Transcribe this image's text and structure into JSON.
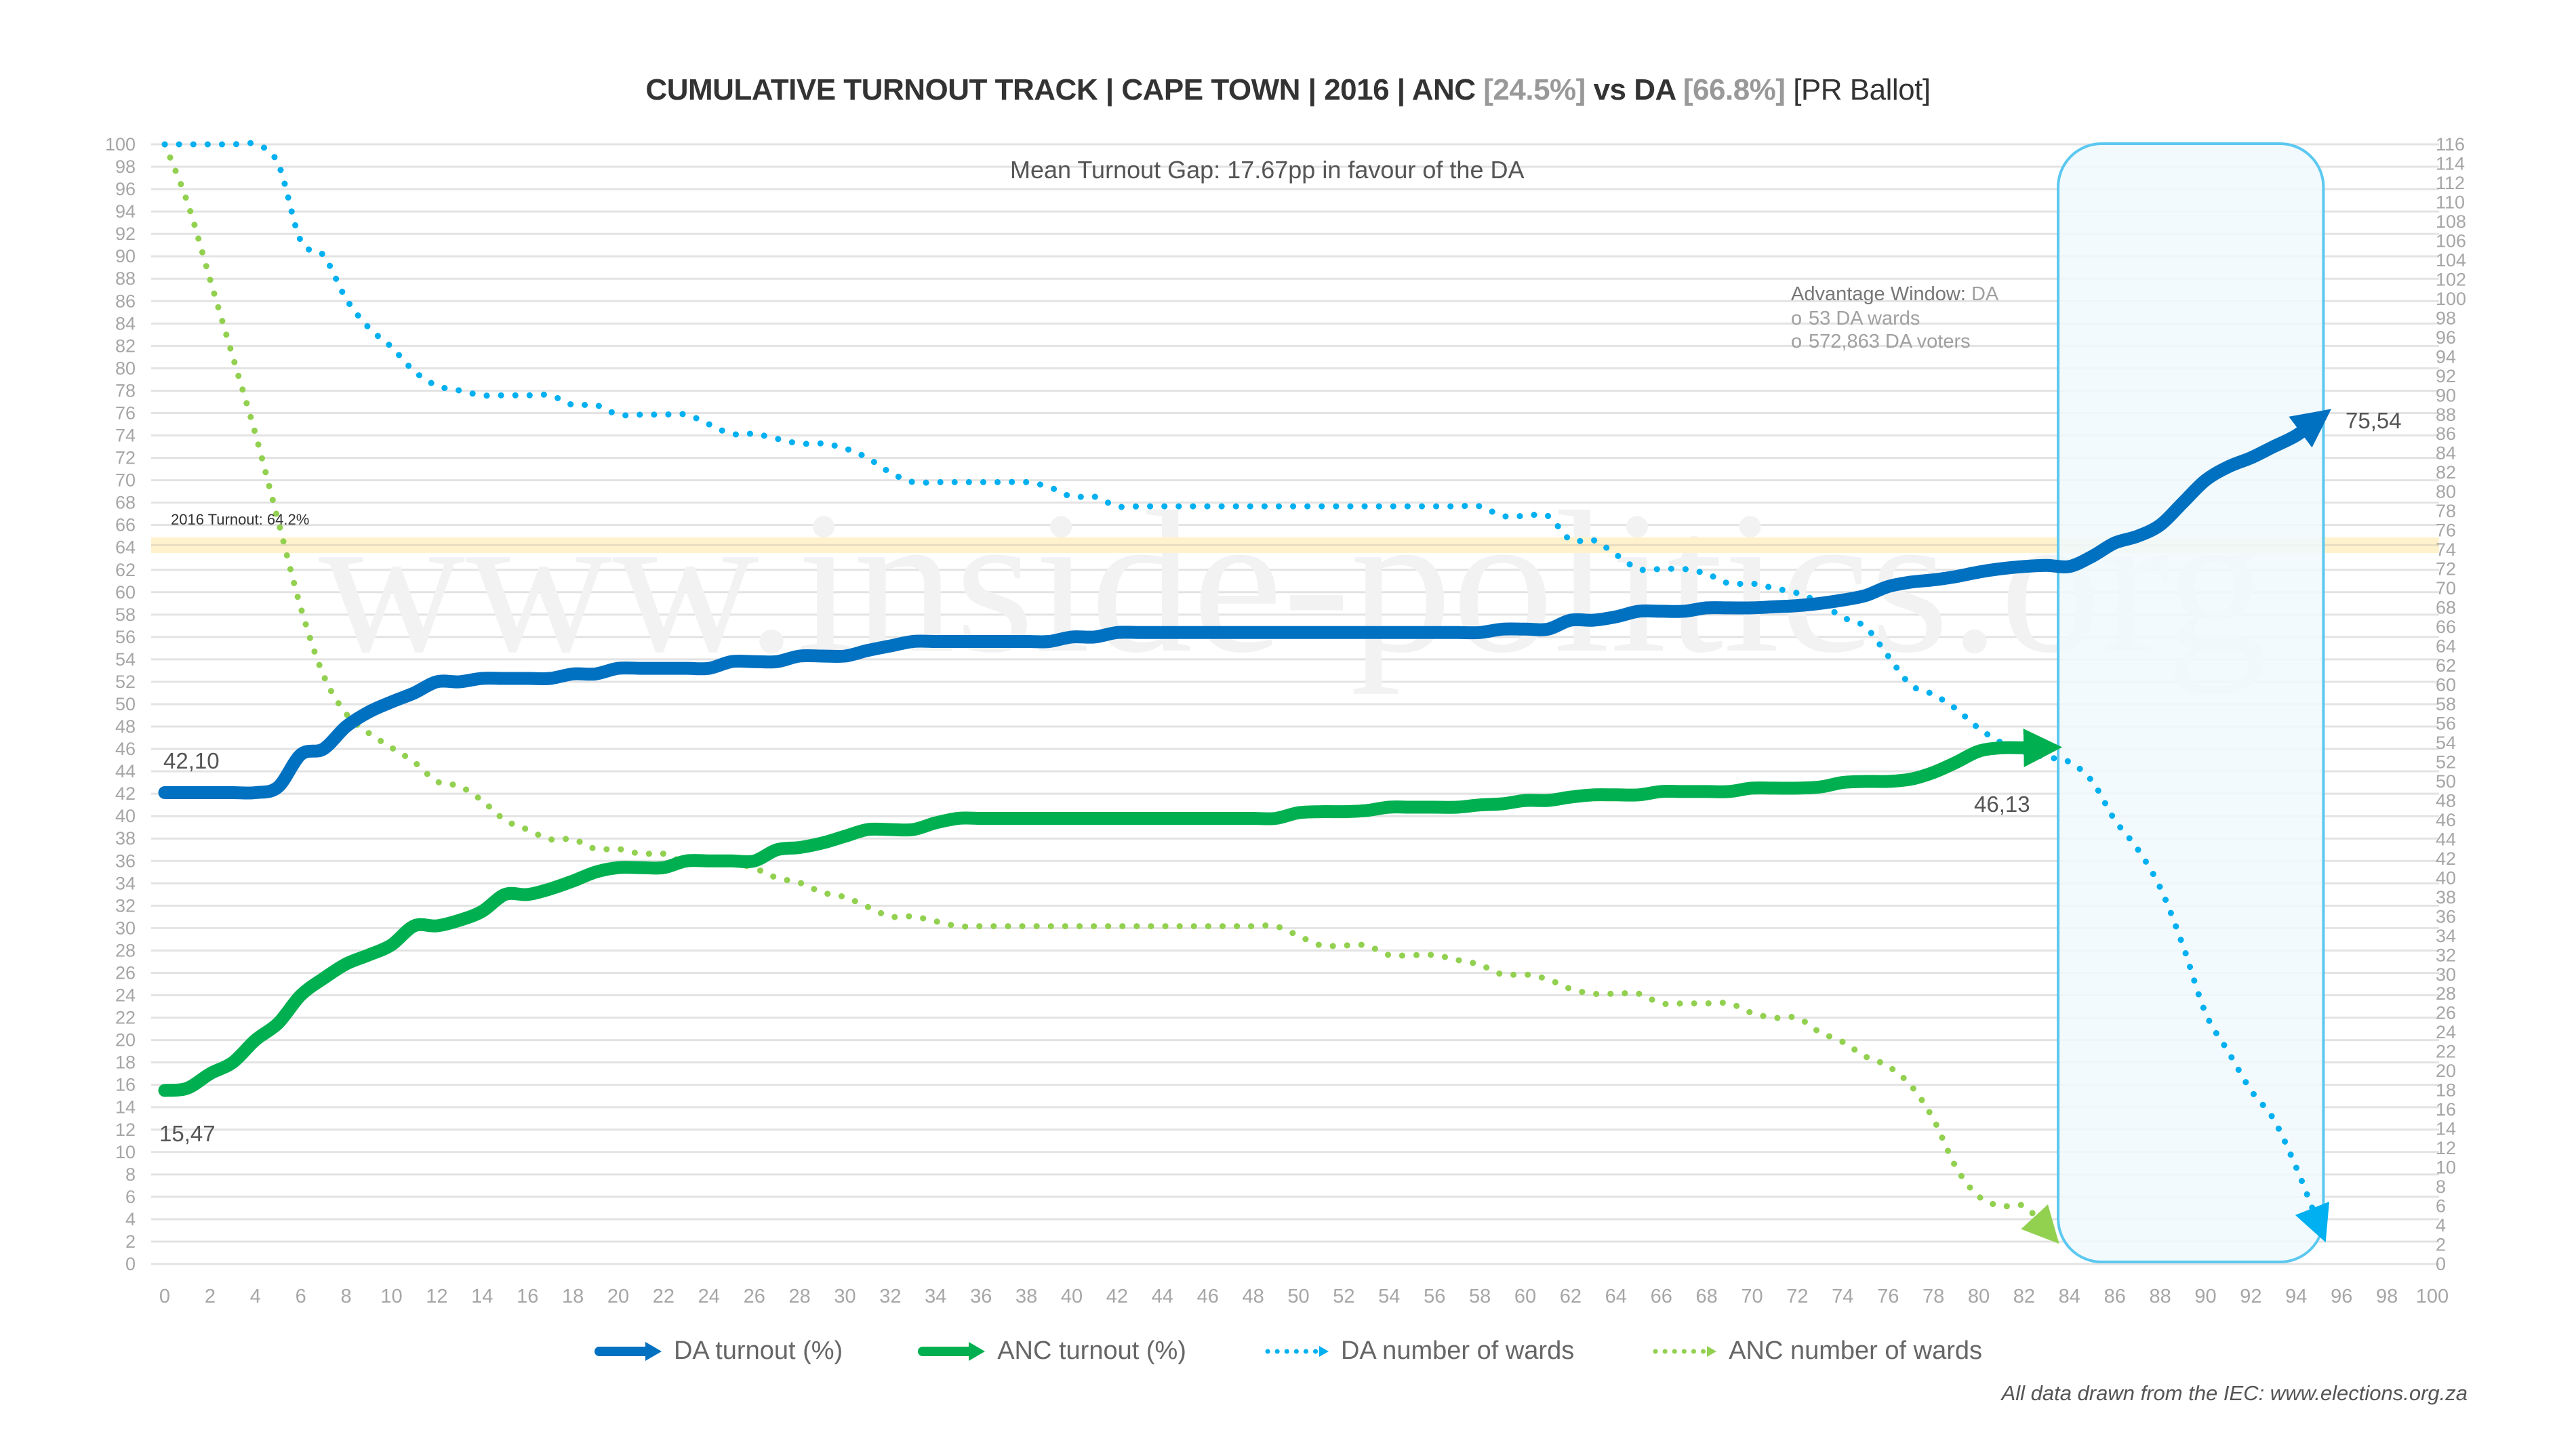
{
  "title": {
    "part1": "CUMULATIVE TURNOUT TRACK | CAPE TOWN | 2016 | ANC ",
    "anc_pct": "[24.5%]",
    "part2": " vs DA ",
    "da_pct": "[66.8%]",
    "part3": " [PR Ballot]"
  },
  "annotations": {
    "mean_gap": "Mean Turnout Gap: 17.67pp in favour of the DA",
    "turnout_line_label": "2016 Turnout: 64.2%",
    "advantage_title": "Advantage Window: ",
    "advantage_party": "DA",
    "advantage_bullet": "o",
    "advantage_items": [
      "53 DA wards",
      "572,863 DA voters"
    ],
    "watermark": "www.inside-politics.org"
  },
  "legend": [
    {
      "label": "DA turnout (%)",
      "style": "solid-arrow",
      "color": "#0070C0"
    },
    {
      "label": "ANC turnout (%)",
      "style": "solid-arrow",
      "color": "#00B050"
    },
    {
      "label": "DA number of wards",
      "style": "dotted-arrow",
      "color": "#00B0F0"
    },
    {
      "label": "ANC number of wards",
      "style": "dotted-arrow",
      "color": "#92D050"
    }
  ],
  "footer": "All data drawn from the IEC: www.elections.org.za",
  "colors": {
    "da": "#0070C0",
    "anc": "#00B050",
    "da_wards": "#00B0F0",
    "anc_wards": "#92D050",
    "turnout_band": "#FFF2CC",
    "window_border": "#5BC8F0",
    "window_fill": "#F0F9FD"
  },
  "chart_data": {
    "type": "line",
    "title": "CUMULATIVE TURNOUT TRACK | CAPE TOWN | 2016 | ANC [24.5%] vs DA [66.8%] [PR Ballot]",
    "xlabel": "",
    "ylabel": "",
    "xlim": [
      0,
      100
    ],
    "ylim": [
      0,
      100
    ],
    "y2lim": [
      0,
      116
    ],
    "x_ticks": [
      0,
      2,
      4,
      6,
      8,
      10,
      12,
      14,
      16,
      18,
      20,
      22,
      24,
      26,
      28,
      30,
      32,
      34,
      36,
      38,
      40,
      42,
      44,
      46,
      48,
      50,
      52,
      54,
      56,
      58,
      60,
      62,
      64,
      66,
      68,
      70,
      72,
      74,
      76,
      78,
      80,
      82,
      84,
      86,
      88,
      90,
      92,
      94,
      96,
      98,
      100
    ],
    "y_ticks": [
      0,
      2,
      4,
      6,
      8,
      10,
      12,
      14,
      16,
      18,
      20,
      22,
      24,
      26,
      28,
      30,
      32,
      34,
      36,
      38,
      40,
      42,
      44,
      46,
      48,
      50,
      52,
      54,
      56,
      58,
      60,
      62,
      64,
      66,
      68,
      70,
      72,
      74,
      76,
      78,
      80,
      82,
      84,
      86,
      88,
      90,
      92,
      94,
      96,
      98,
      100
    ],
    "y2_ticks": [
      0,
      2,
      4,
      6,
      8,
      10,
      12,
      14,
      16,
      18,
      20,
      22,
      24,
      26,
      28,
      30,
      32,
      34,
      36,
      38,
      40,
      42,
      44,
      46,
      48,
      50,
      52,
      54,
      56,
      58,
      60,
      62,
      64,
      66,
      68,
      70,
      72,
      74,
      76,
      78,
      80,
      82,
      84,
      86,
      88,
      90,
      92,
      94,
      96,
      98,
      100,
      102,
      104,
      106,
      108,
      110,
      112,
      114,
      116
    ],
    "grid": true,
    "legend_position": "bottom",
    "reference_line": {
      "value": 64.2,
      "label": "2016 Turnout: 64.2%"
    },
    "highlight_window": {
      "x_start": 83.5,
      "x_end": 95.2,
      "label": "Advantage Window: DA"
    },
    "series": [
      {
        "name": "DA turnout (%)",
        "axis": "left",
        "style": "solid",
        "x": [
          0,
          1,
          2,
          3,
          4,
          5,
          6,
          7,
          8,
          9,
          10,
          11,
          12,
          13,
          14,
          15,
          16,
          17,
          18,
          19,
          20,
          21,
          22,
          23,
          24,
          25,
          26,
          27,
          28,
          29,
          30,
          31,
          32,
          33,
          34,
          35,
          36,
          37,
          38,
          39,
          40,
          41,
          42,
          43,
          44,
          45,
          46,
          47,
          48,
          49,
          50,
          51,
          52,
          53,
          54,
          55,
          56,
          57,
          58,
          59,
          60,
          61,
          62,
          63,
          64,
          65,
          66,
          67,
          68,
          69,
          70,
          71,
          72,
          73,
          74,
          75,
          76,
          77,
          78,
          79,
          80,
          81,
          82,
          83,
          84,
          85,
          86,
          87,
          88,
          89,
          90,
          91,
          92,
          93,
          94,
          95
        ],
        "values": [
          42.1,
          42.1,
          42.1,
          42.1,
          42.1,
          42.6,
          45.5,
          46,
          48,
          49.3,
          50.2,
          51,
          52,
          52,
          52.3,
          52.3,
          52.3,
          52.3,
          52.7,
          52.7,
          53.2,
          53.2,
          53.2,
          53.2,
          53.2,
          53.8,
          53.8,
          53.8,
          54.3,
          54.3,
          54.3,
          54.8,
          55.2,
          55.6,
          55.6,
          55.6,
          55.6,
          55.6,
          55.6,
          55.6,
          56,
          56,
          56.4,
          56.4,
          56.4,
          56.4,
          56.4,
          56.4,
          56.4,
          56.4,
          56.4,
          56.4,
          56.4,
          56.4,
          56.4,
          56.4,
          56.4,
          56.4,
          56.4,
          56.7,
          56.7,
          56.7,
          57.5,
          57.5,
          57.8,
          58.3,
          58.3,
          58.3,
          58.6,
          58.6,
          58.6,
          58.7,
          58.8,
          59,
          59.3,
          59.7,
          60.5,
          60.9,
          61.1,
          61.4,
          61.8,
          62.1,
          62.3,
          62.4,
          62.3,
          63.2,
          64.4,
          65,
          66,
          68,
          70,
          71.2,
          72,
          73,
          74,
          75.54
        ],
        "start_label": "42,10",
        "end_label": "75,54"
      },
      {
        "name": "ANC turnout (%)",
        "axis": "left",
        "style": "solid",
        "x": [
          0,
          1,
          2,
          3,
          4,
          5,
          6,
          7,
          8,
          9,
          10,
          11,
          12,
          13,
          14,
          15,
          16,
          17,
          18,
          19,
          20,
          21,
          22,
          23,
          24,
          25,
          26,
          27,
          28,
          29,
          30,
          31,
          32,
          33,
          34,
          35,
          36,
          37,
          38,
          39,
          40,
          41,
          42,
          43,
          44,
          45,
          46,
          47,
          48,
          49,
          50,
          51,
          52,
          53,
          54,
          55,
          56,
          57,
          58,
          59,
          60,
          61,
          62,
          63,
          64,
          65,
          66,
          67,
          68,
          69,
          70,
          71,
          72,
          73,
          74,
          75,
          76,
          77,
          78,
          79,
          80,
          81,
          82,
          83
        ],
        "values": [
          15.5,
          15.7,
          17,
          18,
          20,
          21.5,
          24,
          25.5,
          26.8,
          27.6,
          28.5,
          30.2,
          30.2,
          30.7,
          31.5,
          33,
          33,
          33.5,
          34.2,
          35,
          35.4,
          35.4,
          35.4,
          36,
          36,
          36,
          36,
          37,
          37.2,
          37.6,
          38.2,
          38.8,
          38.8,
          38.8,
          39.4,
          39.8,
          39.8,
          39.8,
          39.8,
          39.8,
          39.8,
          39.8,
          39.8,
          39.8,
          39.8,
          39.8,
          39.8,
          39.8,
          39.8,
          39.8,
          40.3,
          40.4,
          40.4,
          40.5,
          40.8,
          40.8,
          40.8,
          40.8,
          41,
          41.1,
          41.4,
          41.4,
          41.7,
          41.9,
          41.9,
          41.9,
          42.2,
          42.2,
          42.2,
          42.2,
          42.5,
          42.5,
          42.5,
          42.6,
          43,
          43.1,
          43.1,
          43.3,
          43.9,
          44.8,
          45.8,
          46.1,
          46.1,
          46.13
        ],
        "start_label": "15,47",
        "end_label": "46,13"
      },
      {
        "name": "DA number of wards",
        "axis": "right",
        "style": "dotted",
        "x": [
          0,
          1,
          2,
          3,
          4,
          5,
          6,
          7,
          8,
          9,
          10,
          11,
          12,
          13,
          14,
          15,
          16,
          17,
          18,
          19,
          20,
          21,
          22,
          23,
          24,
          25,
          26,
          27,
          28,
          29,
          30,
          31,
          32,
          33,
          34,
          35,
          36,
          37,
          38,
          39,
          40,
          41,
          42,
          43,
          44,
          45,
          46,
          47,
          48,
          49,
          50,
          51,
          52,
          53,
          54,
          55,
          56,
          57,
          58,
          59,
          60,
          61,
          62,
          63,
          64,
          65,
          66,
          67,
          68,
          69,
          70,
          71,
          72,
          73,
          74,
          75,
          76,
          77,
          78,
          79,
          80,
          81,
          82,
          83,
          84,
          85,
          86,
          87,
          88,
          89,
          90,
          91,
          92,
          93,
          94,
          95
        ],
        "values": [
          116,
          116,
          116,
          116,
          116,
          114,
          106,
          104.5,
          100,
          97,
          95,
          92.5,
          91,
          90.5,
          90,
          90,
          90,
          90,
          89,
          89,
          88,
          88,
          88,
          88,
          87,
          86,
          86,
          85.5,
          85,
          85,
          84.5,
          83.5,
          82,
          81,
          81,
          81,
          81,
          81,
          81,
          80.5,
          79.5,
          79.5,
          78.5,
          78.5,
          78.5,
          78.5,
          78.5,
          78.5,
          78.5,
          78.5,
          78.5,
          78.5,
          78.5,
          78.5,
          78.5,
          78.5,
          78.5,
          78.5,
          78.5,
          77.5,
          77.5,
          77.5,
          75,
          75,
          73.5,
          72,
          72,
          72,
          71.5,
          70.5,
          70.5,
          70,
          69.5,
          68.5,
          67,
          66,
          63,
          60,
          59,
          57.5,
          55.5,
          54,
          53,
          52.5,
          52,
          50,
          46,
          43,
          39,
          33,
          26,
          22,
          18,
          15,
          10,
          4
        ]
      },
      {
        "name": "ANC number of wards",
        "axis": "right",
        "style": "dotted",
        "x": [
          0,
          1,
          2,
          3,
          4,
          5,
          6,
          7,
          8,
          9,
          10,
          11,
          12,
          13,
          14,
          15,
          16,
          17,
          18,
          19,
          20,
          21,
          22,
          23,
          24,
          25,
          26,
          27,
          28,
          29,
          30,
          31,
          32,
          33,
          34,
          35,
          36,
          37,
          38,
          39,
          40,
          41,
          42,
          43,
          44,
          45,
          46,
          47,
          48,
          49,
          50,
          51,
          52,
          53,
          54,
          55,
          56,
          57,
          58,
          59,
          60,
          61,
          62,
          63,
          64,
          65,
          66,
          67,
          68,
          69,
          70,
          71,
          72,
          73,
          74,
          75,
          76,
          77,
          78,
          79,
          80,
          81,
          82,
          83
        ],
        "values": [
          116,
          110,
          102,
          94,
          86,
          77,
          68,
          61,
          57,
          55,
          53.5,
          52,
          50,
          49.5,
          48,
          46,
          45,
          44,
          44,
          43,
          43,
          42.5,
          42.5,
          41.5,
          41.5,
          41.5,
          41,
          40,
          39.5,
          38.5,
          38,
          37,
          36,
          36,
          35.5,
          35,
          35,
          35,
          35,
          35,
          35,
          35,
          35,
          35,
          35,
          35,
          35,
          35,
          35,
          35,
          34,
          33,
          33,
          33,
          32,
          32,
          32,
          31.5,
          31,
          30,
          30,
          29.5,
          28.5,
          28,
          28,
          28,
          27,
          27,
          27,
          27,
          26,
          25.5,
          25.5,
          24,
          23,
          21.5,
          20.5,
          18.5,
          15,
          10,
          7,
          6,
          6,
          3.5
        ]
      }
    ]
  }
}
